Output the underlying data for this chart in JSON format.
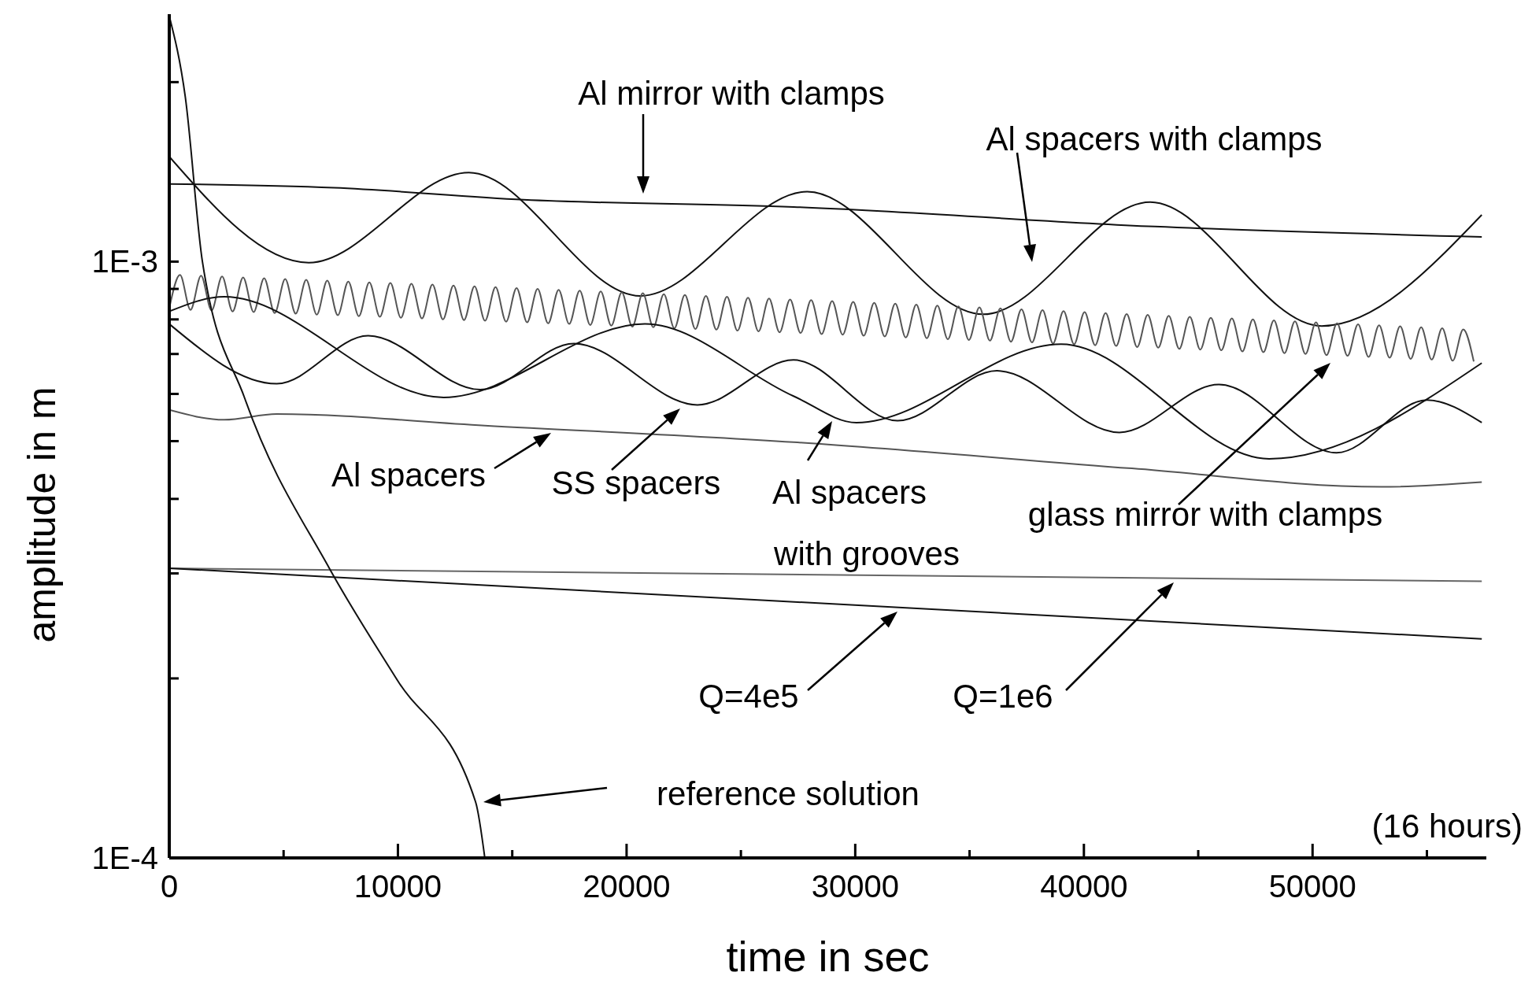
{
  "chart_data": {
    "type": "line",
    "xlabel": "time in sec",
    "ylabel": "amplitude in m",
    "log": "y",
    "grid": false,
    "xlim": [
      0,
      57600
    ],
    "ylim": [
      0.0001,
      0.0026
    ],
    "xticks": [
      0,
      {
        "value": 5000,
        "label": null
      },
      10000,
      {
        "value": 15000,
        "label": null
      },
      20000,
      {
        "value": 25000,
        "label": null
      },
      30000,
      {
        "value": 35000,
        "label": null
      },
      40000,
      {
        "value": 45000,
        "label": null
      },
      50000,
      {
        "value": 55000,
        "label": null
      }
    ],
    "yticks": [
      {
        "value": 0.0001,
        "label": "1E-4"
      },
      {
        "value": 0.0002,
        "label": null
      },
      {
        "value": 0.0003,
        "label": null
      },
      {
        "value": 0.0004,
        "label": null
      },
      {
        "value": 0.0005,
        "label": null
      },
      {
        "value": 0.0006,
        "label": null
      },
      {
        "value": 0.0007,
        "label": null
      },
      {
        "value": 0.0008,
        "label": null
      },
      {
        "value": 0.0009,
        "label": null
      },
      {
        "value": 0.001,
        "label": "1E-3"
      },
      {
        "value": 0.002,
        "label": null
      }
    ],
    "series": [
      {
        "color": "#111111",
        "x": [
          0,
          7200,
          15500,
          27300,
          43100,
          57400
        ],
        "values": [
          0.00135,
          0.00133,
          0.00127,
          0.001235,
          0.001145,
          0.0011
        ]
      },
      {
        "color": "#111111",
        "x": [
          0,
          6100,
          13100,
          20600,
          27900,
          35600,
          42900,
          50400,
          57400
        ],
        "values": [
          0.0015,
          0.000996,
          0.00141,
          0.000876,
          0.00131,
          0.000816,
          0.001258,
          0.00078,
          0.001198
        ]
      },
      {
        "color": "#555555",
        "x": [
          0,
          470,
          930,
          1390,
          1850,
          2310,
          2770,
          3230,
          3690,
          4150,
          4610,
          5070,
          5530,
          5990,
          6450,
          6910,
          7370,
          7830,
          8290,
          8750,
          9210,
          9670,
          10130,
          10590,
          11050,
          11510,
          11970,
          12430,
          12890,
          13350,
          13810,
          14270,
          14730,
          15190,
          15650,
          16110,
          16570,
          17030,
          17490,
          17950,
          18410,
          18870,
          19330,
          19790,
          20250,
          20710,
          21170,
          21630,
          22090,
          22550,
          23010,
          23470,
          23930,
          24390,
          24850,
          25310,
          25770,
          26230,
          26690,
          27150,
          27610,
          28070,
          28530,
          28990,
          29450,
          29910,
          30370,
          30830,
          31290,
          31750,
          32210,
          32670,
          33130,
          33590,
          34050,
          34510,
          34970,
          35430,
          35890,
          36350,
          36810,
          37270,
          37730,
          38190,
          38650,
          39110,
          39570,
          40030,
          40490,
          40950,
          41410,
          41870,
          42330,
          42790,
          43250,
          43710,
          44170,
          44630,
          45090,
          45550,
          46010,
          46470,
          46930,
          47390,
          47850,
          48310,
          48770,
          49230,
          49690,
          50150,
          50610,
          51070,
          51530,
          51990,
          52450,
          52910,
          53370,
          53830,
          54290,
          54750,
          55210,
          55670,
          56130,
          56590,
          57050
        ],
        "values": [
          0.000835,
          0.00095,
          0.00083,
          0.000947,
          0.000828,
          0.000944,
          0.000825,
          0.000941,
          0.000823,
          0.000938,
          0.00082,
          0.000935,
          0.000818,
          0.000932,
          0.000815,
          0.000929,
          0.000813,
          0.000926,
          0.00081,
          0.000923,
          0.000808,
          0.000921,
          0.000805,
          0.000918,
          0.000803,
          0.000915,
          0.0008,
          0.000912,
          0.000798,
          0.000909,
          0.000796,
          0.000906,
          0.000793,
          0.000903,
          0.000791,
          0.0009,
          0.000788,
          0.000897,
          0.000786,
          0.000894,
          0.000783,
          0.000891,
          0.000781,
          0.000888,
          0.000778,
          0.000885,
          0.000776,
          0.000882,
          0.000773,
          0.000879,
          0.000771,
          0.000876,
          0.000769,
          0.000873,
          0.000766,
          0.00087,
          0.000764,
          0.000867,
          0.000761,
          0.000864,
          0.000759,
          0.000862,
          0.000756,
          0.000859,
          0.000754,
          0.000856,
          0.000751,
          0.000853,
          0.000749,
          0.00085,
          0.000746,
          0.000847,
          0.000744,
          0.000844,
          0.000741,
          0.000841,
          0.000739,
          0.000838,
          0.000737,
          0.000835,
          0.000734,
          0.000832,
          0.000732,
          0.000829,
          0.000729,
          0.000826,
          0.000727,
          0.000823,
          0.000724,
          0.00082,
          0.000722,
          0.000817,
          0.000719,
          0.000814,
          0.000717,
          0.000811,
          0.000714,
          0.000808,
          0.000712,
          0.000805,
          0.00071,
          0.000803,
          0.000707,
          0.0008,
          0.000705,
          0.000797,
          0.000702,
          0.000794,
          0.0007,
          0.000791,
          0.000697,
          0.000788,
          0.000695,
          0.000785,
          0.000692,
          0.000782,
          0.00069,
          0.000779,
          0.000687,
          0.000776,
          0.000685,
          0.000773,
          0.000682,
          0.00077,
          0.00068
        ]
      },
      {
        "color": "#111111",
        "x": [
          0,
          2400,
          12000,
          20800,
          27300,
          30050,
          39000,
          48100,
          57400
        ],
        "values": [
          0.000825,
          0.000873,
          0.000592,
          0.000786,
          0.000595,
          0.000537,
          0.000727,
          0.000467,
          0.000676
        ]
      },
      {
        "color": "#111111",
        "x": [
          0,
          4700,
          8700,
          13600,
          17700,
          23100,
          27300,
          31850,
          36200,
          41550,
          45900,
          51050,
          55000,
          57400
        ],
        "values": [
          0.000786,
          0.000624,
          0.000751,
          0.00061,
          0.000729,
          0.000575,
          0.000684,
          0.000541,
          0.000656,
          0.000517,
          0.000622,
          0.000478,
          0.000586,
          0.000537
        ]
      },
      {
        "color": "#555555",
        "x": [
          0,
          2400,
          4700,
          13800,
          27300,
          42100,
          53000,
          57400
        ],
        "values": [
          0.000564,
          0.000543,
          0.000555,
          0.000531,
          0.000498,
          0.00045,
          0.000419,
          0.000427
        ]
      },
      {
        "color": "#666666",
        "x": [
          0,
          57400
        ],
        "values": [
          0.000306,
          0.000291
        ]
      },
      {
        "color": "#111111",
        "x": [
          0,
          57400
        ],
        "values": [
          0.000306,
          0.000233
        ]
      },
      {
        "color": "#111111",
        "x": [
          0,
          700,
          1450,
          3300,
          7000,
          9960,
          13400,
          13800
        ],
        "values": [
          0.00258,
          0.00189,
          0.001,
          0.00059,
          0.000306,
          0.000199,
          0.000124,
          0.0001
        ]
      }
    ],
    "annotations": [
      "Al mirror with clamps",
      "Al spacers with clamps",
      "Al spacers",
      "SS spacers",
      "Al spacers with grooves",
      "glass mirror with clamps",
      "Q=4e5",
      "Q=1e6",
      "reference solution",
      "(16 hours)"
    ]
  }
}
